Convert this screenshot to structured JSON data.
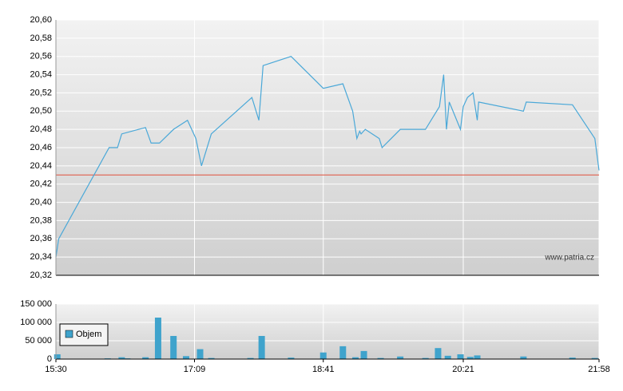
{
  "chart_data": [
    {
      "type": "line",
      "x": [
        "15:30",
        "15:32",
        "16:08",
        "16:14",
        "16:17",
        "16:34",
        "16:38",
        "16:44",
        "16:54",
        "17:04",
        "17:10",
        "17:14",
        "17:21",
        "17:50",
        "17:55",
        "17:58",
        "18:18",
        "18:41",
        "18:55",
        "19:02",
        "19:05",
        "19:07",
        "19:08",
        "19:11",
        "19:21",
        "19:23",
        "19:36",
        "19:54",
        "20:04",
        "20:07",
        "20:09",
        "20:11",
        "20:19",
        "20:21",
        "20:24",
        "20:28",
        "20:31",
        "20:32",
        "21:04",
        "21:06",
        "21:39",
        "21:55",
        "21:58"
      ],
      "values": [
        20.34,
        20.36,
        20.46,
        20.46,
        20.475,
        20.482,
        20.465,
        20.465,
        20.48,
        20.49,
        20.47,
        20.44,
        20.475,
        20.515,
        20.49,
        20.55,
        20.56,
        20.525,
        20.53,
        20.5,
        20.47,
        20.478,
        20.475,
        20.48,
        20.47,
        20.46,
        20.48,
        20.48,
        20.505,
        20.54,
        20.48,
        20.51,
        20.48,
        20.505,
        20.515,
        20.52,
        20.49,
        20.51,
        20.5,
        20.51,
        20.507,
        20.47,
        20.435
      ],
      "color": "#4aa8d8",
      "reference_line": 20.43,
      "reference_color": "#e0503c",
      "xlim": [
        "15:30",
        "21:58"
      ],
      "ylim": [
        20.32,
        20.6
      ],
      "yticks": [
        {
          "value": 20.32,
          "label": "20,32"
        },
        {
          "value": 20.34,
          "label": "20,34"
        },
        {
          "value": 20.36,
          "label": "20,36"
        },
        {
          "value": 20.38,
          "label": "20,38"
        },
        {
          "value": 20.4,
          "label": "20,40"
        },
        {
          "value": 20.42,
          "label": "20,42"
        },
        {
          "value": 20.44,
          "label": "20,44"
        },
        {
          "value": 20.46,
          "label": "20,46"
        },
        {
          "value": 20.48,
          "label": "20,48"
        },
        {
          "value": 20.5,
          "label": "20,50"
        },
        {
          "value": 20.52,
          "label": "20,52"
        },
        {
          "value": 20.54,
          "label": "20,54"
        },
        {
          "value": 20.56,
          "label": "20,56"
        },
        {
          "value": 20.58,
          "label": "20,58"
        },
        {
          "value": 20.6,
          "label": "20,60"
        }
      ],
      "watermark": "www.patria.cz"
    },
    {
      "type": "bar",
      "x": [
        "15:31",
        "16:07",
        "16:17",
        "16:21",
        "16:34",
        "16:43",
        "16:54",
        "17:03",
        "17:13",
        "17:21",
        "17:49",
        "17:57",
        "18:18",
        "18:41",
        "18:55",
        "19:04",
        "19:10",
        "19:22",
        "19:36",
        "19:54",
        "20:03",
        "20:10",
        "20:19",
        "20:26",
        "20:31",
        "21:04",
        "21:39",
        "21:55"
      ],
      "series": [
        {
          "name": "Objem",
          "color": "#3fa3cc",
          "values": [
            13000,
            2000,
            5000,
            2000,
            5000,
            113000,
            63000,
            8000,
            27000,
            3000,
            3000,
            63000,
            4000,
            18000,
            35000,
            5000,
            22000,
            3000,
            7000,
            3000,
            30000,
            9000,
            13000,
            6000,
            10000,
            7000,
            4000,
            3000
          ]
        }
      ],
      "xlim": [
        "15:30",
        "21:58"
      ],
      "xticks": [
        "15:30",
        "17:09",
        "18:41",
        "20:21",
        "21:58"
      ],
      "ylim": [
        0,
        150000
      ],
      "yticks": [
        0,
        {
          "value": 50000,
          "label": "50 000"
        },
        {
          "value": 100000,
          "label": "100 000"
        },
        {
          "value": 150000,
          "label": "150 000"
        }
      ]
    }
  ]
}
